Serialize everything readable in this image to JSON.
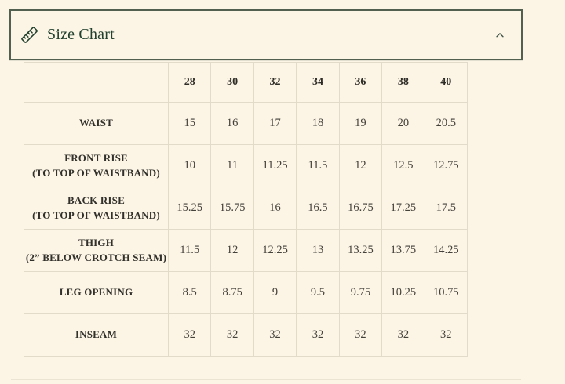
{
  "accordion": {
    "title": "Size Chart",
    "expanded": true,
    "icons": {
      "leading": "ruler-icon",
      "trailing": "chevron-up-icon"
    }
  },
  "size_table": {
    "corner_header": "",
    "sizes": [
      "28",
      "30",
      "32",
      "34",
      "36",
      "38",
      "40"
    ],
    "rows": [
      {
        "label_lines": [
          "WAIST"
        ],
        "values": [
          "15",
          "16",
          "17",
          "18",
          "19",
          "20",
          "20.5"
        ]
      },
      {
        "label_lines": [
          "FRONT RISE",
          "(TO TOP OF WAISTBAND)"
        ],
        "values": [
          "10",
          "11",
          "11.25",
          "11.5",
          "12",
          "12.5",
          "12.75"
        ]
      },
      {
        "label_lines": [
          "BACK RISE",
          "(TO TOP OF WAISTBAND)"
        ],
        "values": [
          "15.25",
          "15.75",
          "16",
          "16.5",
          "16.75",
          "17.25",
          "17.5"
        ]
      },
      {
        "label_lines": [
          "THIGH",
          "(2” BELOW CROTCH SEAM)"
        ],
        "values": [
          "11.5",
          "12",
          "12.25",
          "13",
          "13.25",
          "13.75",
          "14.25"
        ]
      },
      {
        "label_lines": [
          "LEG OPENING"
        ],
        "values": [
          "8.5",
          "8.75",
          "9",
          "9.5",
          "9.75",
          "10.25",
          "10.75"
        ]
      },
      {
        "label_lines": [
          "INSEAM"
        ],
        "values": [
          "32",
          "32",
          "32",
          "32",
          "32",
          "32",
          "32"
        ]
      }
    ]
  },
  "colors": {
    "background": "#fcf5e5",
    "accent_green": "#22402e",
    "panel_border": "#52614f",
    "grid_line": "#e3dbca",
    "header_text": "#2e2c27",
    "value_text": "#44413b"
  }
}
